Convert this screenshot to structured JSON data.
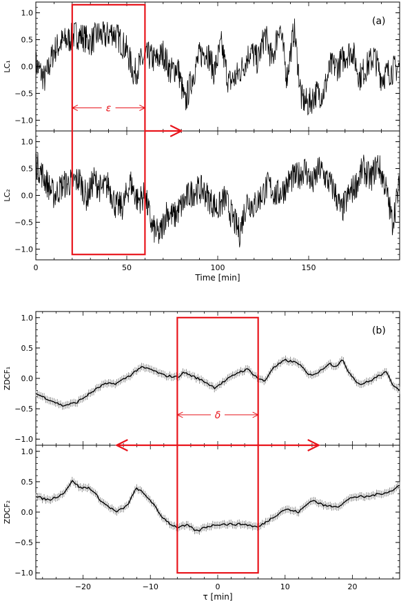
{
  "panels": {
    "a": {
      "label": "(a)"
    },
    "b": {
      "label": "(b)"
    }
  },
  "chart_data": [
    {
      "type": "line",
      "title": "",
      "panel": "a-top",
      "xlabel": "",
      "ylabel": "LC₁",
      "xlim": [
        0,
        200
      ],
      "ylim": [
        -1.2,
        1.2
      ],
      "yticks": [
        -1.0,
        -0.5,
        0.0,
        0.5,
        1.0
      ],
      "ytick_labels": [
        "−1.0",
        "−0.5",
        "0.0",
        "0.5",
        "1.0"
      ],
      "series": [
        {
          "points_approx": [
            [
              0,
              0.05
            ],
            [
              5,
              -0.25
            ],
            [
              10,
              0.3
            ],
            [
              14,
              0.45
            ],
            [
              18,
              0.5
            ],
            [
              22,
              0.6
            ],
            [
              26,
              0.55
            ],
            [
              30,
              0.45
            ],
            [
              34,
              0.6
            ],
            [
              38,
              0.55
            ],
            [
              42,
              0.65
            ],
            [
              46,
              0.5
            ],
            [
              50,
              0.3
            ],
            [
              54,
              -0.15
            ],
            [
              58,
              0.1
            ],
            [
              62,
              0.2
            ],
            [
              66,
              0.1
            ],
            [
              70,
              0.25
            ],
            [
              74,
              -0.1
            ],
            [
              78,
              0.0
            ],
            [
              82,
              -0.7
            ],
            [
              86,
              -0.2
            ],
            [
              90,
              0.2
            ],
            [
              94,
              0.3
            ],
            [
              98,
              -0.1
            ],
            [
              102,
              0.4
            ],
            [
              106,
              -0.3
            ],
            [
              110,
              -0.2
            ],
            [
              114,
              0.0
            ],
            [
              118,
              0.3
            ],
            [
              122,
              0.1
            ],
            [
              126,
              0.6
            ],
            [
              130,
              0.1
            ],
            [
              134,
              0.8
            ],
            [
              138,
              -0.2
            ],
            [
              142,
              0.7
            ],
            [
              146,
              -0.6
            ],
            [
              150,
              -0.7
            ],
            [
              154,
              -0.5
            ],
            [
              158,
              -0.5
            ],
            [
              162,
              0.0
            ],
            [
              166,
              0.0
            ],
            [
              170,
              0.2
            ],
            [
              174,
              0.3
            ],
            [
              178,
              -0.2
            ],
            [
              182,
              0.0
            ],
            [
              186,
              0.2
            ],
            [
              190,
              -0.2
            ],
            [
              194,
              -0.1
            ],
            [
              200,
              0.0
            ]
          ]
        }
      ],
      "annotations": [
        {
          "text": "ε",
          "x_from": 20,
          "x_to": 60,
          "y": -0.77
        },
        {
          "text": "",
          "arrow_from": 60,
          "arrow_to": 80,
          "y": -1.2
        },
        {
          "box_x": [
            20,
            60
          ]
        }
      ]
    },
    {
      "type": "line",
      "title": "",
      "panel": "a-bottom",
      "xlabel": "Time [min]",
      "ylabel": "LC₂",
      "xlim": [
        0,
        200
      ],
      "ylim": [
        -1.2,
        1.2
      ],
      "xticks": [
        0,
        50,
        100,
        150
      ],
      "yticks": [
        -1.0,
        -0.5,
        0.0,
        0.5,
        1.0
      ],
      "ytick_labels": [
        "−1.0",
        "−0.5",
        "0.0",
        "0.5",
        "1.0"
      ],
      "series": [
        {
          "points_approx": [
            [
              0,
              0.6
            ],
            [
              5,
              0.3
            ],
            [
              10,
              0.0
            ],
            [
              15,
              0.2
            ],
            [
              20,
              0.25
            ],
            [
              24,
              0.3
            ],
            [
              28,
              -0.05
            ],
            [
              32,
              0.3
            ],
            [
              36,
              0.1
            ],
            [
              40,
              0.2
            ],
            [
              44,
              -0.2
            ],
            [
              48,
              -0.2
            ],
            [
              52,
              0.25
            ],
            [
              56,
              -0.1
            ],
            [
              60,
              0.0
            ],
            [
              64,
              -0.6
            ],
            [
              68,
              -0.75
            ],
            [
              72,
              -0.3
            ],
            [
              76,
              -0.4
            ],
            [
              80,
              -0.2
            ],
            [
              84,
              0.0
            ],
            [
              88,
              0.1
            ],
            [
              92,
              0.1
            ],
            [
              96,
              -0.1
            ],
            [
              100,
              -0.25
            ],
            [
              104,
              -0.05
            ],
            [
              108,
              -0.4
            ],
            [
              112,
              -0.7
            ],
            [
              116,
              -0.1
            ],
            [
              120,
              -0.2
            ],
            [
              124,
              0.0
            ],
            [
              128,
              0.2
            ],
            [
              132,
              0.0
            ],
            [
              136,
              0.1
            ],
            [
              140,
              0.3
            ],
            [
              144,
              0.35
            ],
            [
              148,
              0.5
            ],
            [
              152,
              0.2
            ],
            [
              156,
              0.5
            ],
            [
              160,
              0.3
            ],
            [
              164,
              0.1
            ],
            [
              168,
              -0.3
            ],
            [
              172,
              0.0
            ],
            [
              176,
              0.2
            ],
            [
              180,
              0.5
            ],
            [
              184,
              0.3
            ],
            [
              188,
              0.6
            ],
            [
              192,
              0.2
            ],
            [
              196,
              -0.5
            ],
            [
              200,
              0.2
            ]
          ]
        }
      ]
    },
    {
      "type": "line",
      "title": "",
      "panel": "b-top",
      "xlabel": "",
      "ylabel": "ZDCF₁",
      "xlim": [
        -27,
        27
      ],
      "ylim": [
        -1.1,
        1.1
      ],
      "yticks": [
        -1.0,
        -0.5,
        0.0,
        0.5,
        1.0
      ],
      "ytick_labels": [
        "−1.0",
        "−0.5",
        "0.0",
        "0.5",
        "1.0"
      ],
      "series": [
        {
          "error_bars": true,
          "points_approx": [
            [
              -27,
              -0.25
            ],
            [
              -25,
              -0.35
            ],
            [
              -23,
              -0.45
            ],
            [
              -21,
              -0.4
            ],
            [
              -19,
              -0.25
            ],
            [
              -17,
              -0.1
            ],
            [
              -15,
              -0.08
            ],
            [
              -13,
              0.05
            ],
            [
              -11.5,
              0.18
            ],
            [
              -10,
              0.15
            ],
            [
              -8,
              0.05
            ],
            [
              -6,
              0.02
            ],
            [
              -5,
              0.1
            ],
            [
              -4,
              0.05
            ],
            [
              -2,
              -0.05
            ],
            [
              -0.5,
              -0.15
            ],
            [
              1,
              -0.05
            ],
            [
              3,
              0.1
            ],
            [
              4.5,
              0.15
            ],
            [
              6,
              0.0
            ],
            [
              7,
              -0.05
            ],
            [
              8,
              0.15
            ],
            [
              10,
              0.3
            ],
            [
              12,
              0.25
            ],
            [
              13.5,
              0.05
            ],
            [
              15,
              0.1
            ],
            [
              16.5,
              0.25
            ],
            [
              17.5,
              0.2
            ],
            [
              18.5,
              0.3
            ],
            [
              19.5,
              0.1
            ],
            [
              21,
              -0.1
            ],
            [
              22.5,
              -0.05
            ],
            [
              24,
              0.05
            ],
            [
              25,
              0.1
            ],
            [
              26,
              -0.1
            ],
            [
              27,
              -0.18
            ]
          ]
        }
      ],
      "annotations": [
        {
          "text": "δ",
          "x_from": -6,
          "x_to": 6,
          "y": -0.6
        },
        {
          "text": "",
          "arrow_from": -15,
          "arrow_to": 15,
          "y": -1.1
        },
        {
          "box_x": [
            -6,
            6
          ]
        }
      ]
    },
    {
      "type": "line",
      "title": "",
      "panel": "b-bottom",
      "xlabel": "τ [min]",
      "ylabel": "ZDCF₂",
      "xlim": [
        -27,
        27
      ],
      "ylim": [
        -1.1,
        1.1
      ],
      "xticks": [
        -20,
        -10,
        0,
        10,
        20
      ],
      "xtick_labels": [
        "−20",
        "−10",
        "0",
        "10",
        "20"
      ],
      "yticks": [
        -1.0,
        -0.5,
        0.0,
        0.5,
        1.0
      ],
      "ytick_labels": [
        "−1.0",
        "−0.5",
        "0.0",
        "0.5",
        "1.0"
      ],
      "series": [
        {
          "error_bars": true,
          "points_approx": [
            [
              -27,
              0.25
            ],
            [
              -25,
              0.2
            ],
            [
              -23,
              0.3
            ],
            [
              -21.5,
              0.52
            ],
            [
              -20.5,
              0.4
            ],
            [
              -19,
              0.4
            ],
            [
              -17,
              0.15
            ],
            [
              -15,
              0.0
            ],
            [
              -13.5,
              0.1
            ],
            [
              -12,
              0.4
            ],
            [
              -10,
              0.2
            ],
            [
              -8.5,
              -0.05
            ],
            [
              -7,
              -0.2
            ],
            [
              -6,
              -0.25
            ],
            [
              -4.5,
              -0.22
            ],
            [
              -3,
              -0.32
            ],
            [
              -2,
              -0.25
            ],
            [
              0,
              -0.2
            ],
            [
              2,
              -0.2
            ],
            [
              4,
              -0.2
            ],
            [
              6,
              -0.25
            ],
            [
              8,
              -0.1
            ],
            [
              10,
              0.05
            ],
            [
              12,
              0.0
            ],
            [
              14,
              0.2
            ],
            [
              16,
              0.1
            ],
            [
              18,
              0.1
            ],
            [
              20,
              0.25
            ],
            [
              22,
              0.25
            ],
            [
              24,
              0.3
            ],
            [
              26,
              0.35
            ],
            [
              27,
              0.45
            ]
          ]
        }
      ]
    }
  ],
  "colors": {
    "line": "#000000",
    "highlight": "#e8141b",
    "errorbar": "#777777"
  }
}
